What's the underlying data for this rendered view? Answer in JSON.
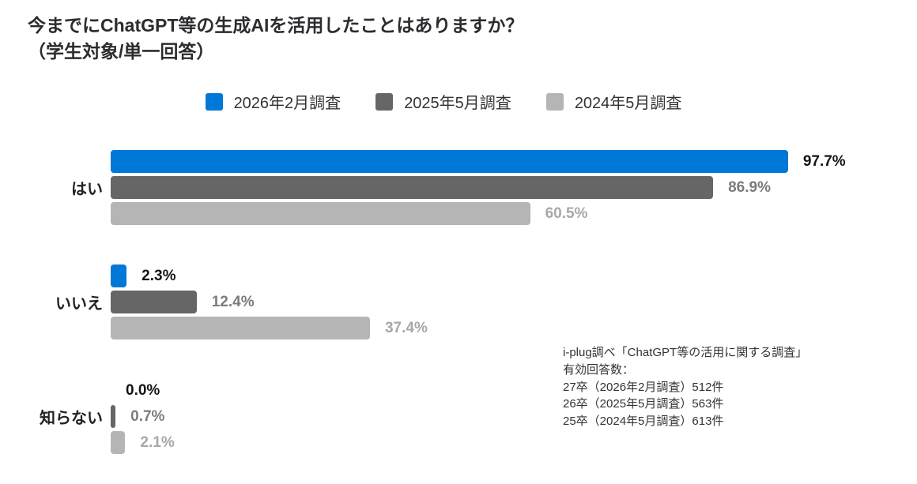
{
  "title": {
    "line1": "今までにChatGPT等の生成AIを活用したことはありますか？",
    "line2": "（学生対象/単一回答）"
  },
  "legend": [
    {
      "label": "2026年2月調査",
      "color": "#0078d7"
    },
    {
      "label": "2025年5月調査",
      "color": "#666666"
    },
    {
      "label": "2024年5月調査",
      "color": "#b5b5b5"
    }
  ],
  "chart_data": {
    "type": "bar",
    "orientation": "horizontal",
    "title": "今までにChatGPT等の生成AIを活用したことはありますか？（学生対象/単一回答）",
    "categories": [
      "はい",
      "いいえ",
      "知らない"
    ],
    "series": [
      {
        "name": "2026年2月調査",
        "color": "#0078d7",
        "label_color": "#141414",
        "values": [
          97.7,
          2.3,
          0.0
        ]
      },
      {
        "name": "2025年5月調査",
        "color": "#666666",
        "label_color": "#7c7c7c",
        "values": [
          86.9,
          12.4,
          0.7
        ]
      },
      {
        "name": "2024年5月調査",
        "color": "#b5b5b5",
        "label_color": "#a8a8a8",
        "values": [
          60.5,
          37.4,
          2.1
        ]
      }
    ],
    "value_suffix": "%",
    "xlim": [
      0,
      100
    ],
    "grid": false,
    "legend_position": "top"
  },
  "footer": {
    "lines": [
      "i-plug調べ「ChatGPT等の活用に関する調査」",
      "有効回答数：",
      "27卒（2026年2月調査）512件",
      "26卒（2025年5月調査）563件",
      "25卒（2024年5月調査）613件"
    ]
  }
}
